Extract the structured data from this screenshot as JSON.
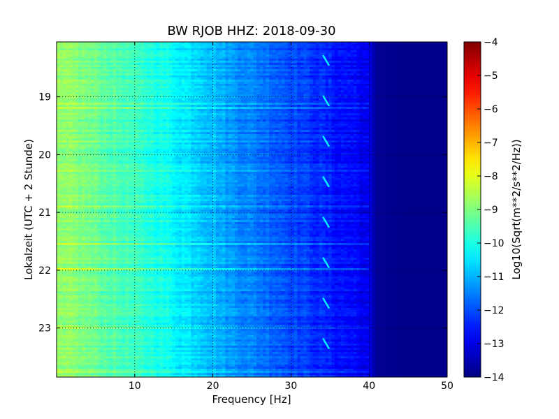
{
  "chart_data": {
    "type": "heatmap",
    "title": "BW RJOB HHZ: 2018-09-30",
    "xlabel": "Frequency [Hz]",
    "ylabel": "Lokalzeit (UTC + 2 Stunde)",
    "xlim": [
      0,
      50
    ],
    "ylim": [
      18.05,
      23.85
    ],
    "y_inverted": true,
    "grid": true,
    "x_ticks": [
      "10",
      "20",
      "30",
      "40",
      "50"
    ],
    "x_tick_values": [
      10,
      20,
      30,
      40,
      50
    ],
    "y_ticks": [
      "19",
      "20",
      "21",
      "22",
      "23"
    ],
    "y_tick_values": [
      19,
      20,
      21,
      22,
      23
    ],
    "colorbar": {
      "label": "Log10(Sqrt(m**2/s**2/Hz))",
      "range": [
        -14,
        -4
      ],
      "ticks": [
        "−4",
        "−5",
        "−6",
        "−7",
        "−8",
        "−9",
        "−10",
        "−11",
        "−12",
        "−13",
        "−14"
      ],
      "tick_values": [
        -4,
        -5,
        -6,
        -7,
        -8,
        -9,
        -10,
        -11,
        -12,
        -13,
        -14
      ],
      "colormap": "jet"
    },
    "spectrum_profile": {
      "frequency_hz": [
        0,
        2,
        4,
        6,
        8,
        10,
        12,
        14,
        16,
        18,
        20,
        22,
        24,
        26,
        28,
        30,
        32,
        34,
        36,
        38,
        40,
        41,
        45,
        50
      ],
      "level": [
        -8.9,
        -8.9,
        -9.1,
        -9.3,
        -9.5,
        -9.7,
        -9.9,
        -10.1,
        -10.4,
        -10.6,
        -10.9,
        -11.2,
        -11.4,
        -11.6,
        -11.8,
        -12.0,
        -12.2,
        -12.4,
        -12.6,
        -12.7,
        -13.0,
        -13.8,
        -13.9,
        -13.9
      ]
    },
    "recurring_feature": {
      "frequency_hz": 34.5,
      "times": [
        18.4,
        19.1,
        19.8,
        20.5,
        21.2,
        21.9,
        22.6,
        23.3
      ]
    }
  }
}
